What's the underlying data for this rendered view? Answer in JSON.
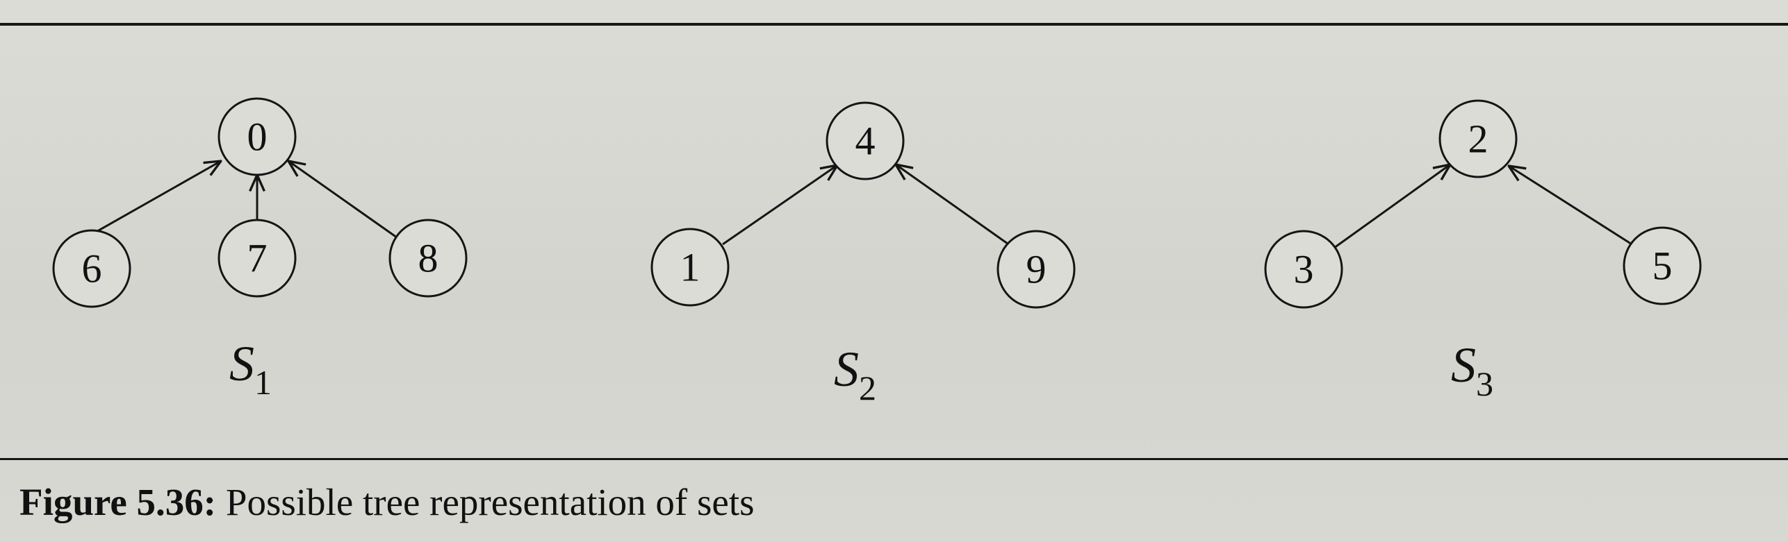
{
  "caption": {
    "prefix": "Figure 5.36:",
    "text": " Possible tree representation of sets"
  },
  "trees": [
    {
      "name": "S",
      "sub": "1",
      "root": "0",
      "children": [
        "6",
        "7",
        "8"
      ]
    },
    {
      "name": "S",
      "sub": "2",
      "root": "4",
      "children": [
        "1",
        "9"
      ]
    },
    {
      "name": "S",
      "sub": "3",
      "root": "2",
      "children": [
        "3",
        "5"
      ]
    }
  ]
}
